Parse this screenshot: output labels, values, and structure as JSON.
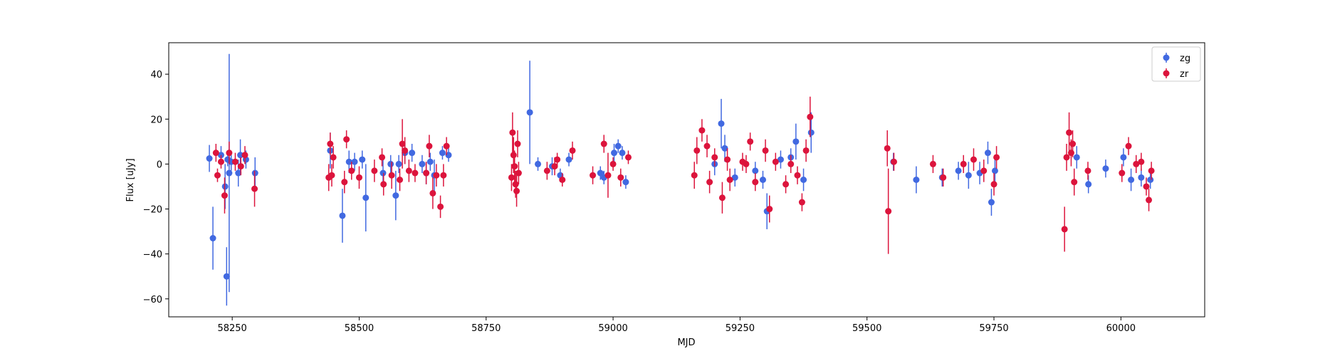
{
  "chart_data": {
    "type": "scatter",
    "xlabel": "MJD",
    "ylabel": "Flux [uJy]",
    "xlim": [
      58125,
      60165
    ],
    "ylim": [
      -68,
      54
    ],
    "xticks": [
      58250,
      58500,
      58750,
      59000,
      59250,
      59500,
      59750,
      60000
    ],
    "yticks": [
      -60,
      -40,
      -20,
      0,
      20,
      40
    ],
    "grid": false,
    "legend": "top-right",
    "series": [
      {
        "name": "zg",
        "color": "#4169e1",
        "points": [
          [
            58205,
            2.5,
            6
          ],
          [
            58212,
            -33,
            14
          ],
          [
            58228,
            4,
            4
          ],
          [
            58236,
            -10,
            10
          ],
          [
            58239,
            -50,
            13
          ],
          [
            58241,
            2,
            3
          ],
          [
            58244,
            -4,
            53
          ],
          [
            58248,
            1,
            4
          ],
          [
            58262,
            -4,
            6
          ],
          [
            58266,
            4,
            7
          ],
          [
            58277,
            2,
            4
          ],
          [
            58295,
            -4,
            7
          ],
          [
            58443,
            6,
            8
          ],
          [
            58467,
            -23,
            12
          ],
          [
            58480,
            1,
            5
          ],
          [
            58491,
            1,
            4
          ],
          [
            58506,
            2,
            4
          ],
          [
            58513,
            -15,
            15
          ],
          [
            58547,
            -4,
            6
          ],
          [
            58562,
            0,
            4
          ],
          [
            58572,
            -14,
            11
          ],
          [
            58578,
            0,
            4
          ],
          [
            58590,
            5,
            5
          ],
          [
            58604,
            5,
            4
          ],
          [
            58624,
            0,
            4
          ],
          [
            58632,
            -4,
            5
          ],
          [
            58640,
            1,
            4
          ],
          [
            58648,
            -5,
            7
          ],
          [
            58664,
            5,
            3
          ],
          [
            58676,
            4,
            3
          ],
          [
            58836,
            23,
            23
          ],
          [
            58852,
            0,
            3
          ],
          [
            58880,
            -1,
            4
          ],
          [
            58896,
            -5,
            3
          ],
          [
            58913,
            2,
            3
          ],
          [
            58975,
            -4,
            3
          ],
          [
            58982,
            -6,
            3
          ],
          [
            59002,
            5,
            4
          ],
          [
            59010,
            8,
            3
          ],
          [
            59018,
            5,
            3
          ],
          [
            59025,
            -8,
            3
          ],
          [
            59200,
            0,
            5
          ],
          [
            59213,
            18,
            11
          ],
          [
            59220,
            7,
            6
          ],
          [
            59240,
            -6,
            4
          ],
          [
            59280,
            -3,
            4
          ],
          [
            59295,
            -7,
            4
          ],
          [
            59303,
            -21,
            8
          ],
          [
            59330,
            2,
            4
          ],
          [
            59350,
            3,
            4
          ],
          [
            59360,
            10,
            8
          ],
          [
            59375,
            -7,
            5
          ],
          [
            59390,
            14,
            9
          ],
          [
            59552,
            1,
            4
          ],
          [
            59597,
            -7,
            6
          ],
          [
            59648,
            -6,
            4
          ],
          [
            59680,
            -3,
            4
          ],
          [
            59700,
            -5,
            6
          ],
          [
            59722,
            -4,
            5
          ],
          [
            59738,
            5,
            5
          ],
          [
            59745,
            -17,
            6
          ],
          [
            59752,
            -3,
            5
          ],
          [
            59913,
            3,
            5
          ],
          [
            59936,
            -9,
            4
          ],
          [
            59970,
            -2,
            4
          ],
          [
            60005,
            3,
            4
          ],
          [
            60020,
            -7,
            5
          ],
          [
            60040,
            -6,
            4
          ],
          [
            60058,
            -7,
            4
          ]
        ]
      },
      {
        "name": "zr",
        "color": "#dc143c",
        "points": [
          [
            58218,
            5,
            4
          ],
          [
            58221,
            -5,
            3
          ],
          [
            58228,
            1,
            3
          ],
          [
            58235,
            -14,
            8
          ],
          [
            58244,
            5,
            5
          ],
          [
            58256,
            1,
            4
          ],
          [
            58267,
            -1,
            4
          ],
          [
            58275,
            4,
            4
          ],
          [
            58294,
            -11,
            8
          ],
          [
            58440,
            -6,
            6
          ],
          [
            58443,
            9,
            5
          ],
          [
            58446,
            -5,
            5
          ],
          [
            58449,
            3,
            5
          ],
          [
            58471,
            -8,
            5
          ],
          [
            58475,
            11,
            4
          ],
          [
            58485,
            -3,
            4
          ],
          [
            58500,
            -6,
            5
          ],
          [
            58530,
            -3,
            5
          ],
          [
            58545,
            3,
            4
          ],
          [
            58548,
            -9,
            5
          ],
          [
            58564,
            -5,
            6
          ],
          [
            58580,
            -7,
            5
          ],
          [
            58585,
            9,
            11
          ],
          [
            58590,
            6,
            6
          ],
          [
            58598,
            -3,
            5
          ],
          [
            58610,
            -4,
            4
          ],
          [
            58632,
            -4,
            5
          ],
          [
            58638,
            8,
            5
          ],
          [
            58645,
            -13,
            7
          ],
          [
            58652,
            -5,
            5
          ],
          [
            58660,
            -19,
            5
          ],
          [
            58666,
            -5,
            5
          ],
          [
            58672,
            8,
            4
          ],
          [
            58800,
            -6,
            6
          ],
          [
            58802,
            14,
            9
          ],
          [
            58804,
            4,
            8
          ],
          [
            58806,
            -1,
            7
          ],
          [
            58808,
            -9,
            6
          ],
          [
            58810,
            -12,
            7
          ],
          [
            58812,
            9,
            6
          ],
          [
            58814,
            -4,
            5
          ],
          [
            58870,
            -3,
            4
          ],
          [
            58885,
            -1,
            4
          ],
          [
            58890,
            2,
            3
          ],
          [
            58900,
            -7,
            3
          ],
          [
            58920,
            6,
            4
          ],
          [
            58960,
            -5,
            4
          ],
          [
            58982,
            9,
            4
          ],
          [
            58990,
            -5,
            10
          ],
          [
            59000,
            0,
            3
          ],
          [
            59015,
            -6,
            4
          ],
          [
            59030,
            3,
            3
          ],
          [
            59160,
            -5,
            6
          ],
          [
            59165,
            6,
            6
          ],
          [
            59175,
            15,
            5
          ],
          [
            59185,
            8,
            5
          ],
          [
            59190,
            -8,
            5
          ],
          [
            59200,
            3,
            4
          ],
          [
            59215,
            -15,
            7
          ],
          [
            59225,
            2,
            5
          ],
          [
            59230,
            -7,
            5
          ],
          [
            59255,
            1,
            4
          ],
          [
            59262,
            0,
            4
          ],
          [
            59270,
            10,
            4
          ],
          [
            59280,
            -8,
            4
          ],
          [
            59300,
            6,
            5
          ],
          [
            59308,
            -20,
            6
          ],
          [
            59320,
            1,
            4
          ],
          [
            59340,
            -9,
            4
          ],
          [
            59350,
            0,
            4
          ],
          [
            59363,
            -5,
            4
          ],
          [
            59372,
            -17,
            4
          ],
          [
            59380,
            6,
            5
          ],
          [
            59388,
            21,
            9
          ],
          [
            59540,
            7,
            8
          ],
          [
            59542,
            -21,
            19
          ],
          [
            59553,
            1,
            4
          ],
          [
            59630,
            0,
            4
          ],
          [
            59650,
            -6,
            4
          ],
          [
            59690,
            0,
            4
          ],
          [
            59710,
            2,
            5
          ],
          [
            59730,
            -3,
            5
          ],
          [
            59750,
            -9,
            5
          ],
          [
            59755,
            3,
            5
          ],
          [
            59889,
            -29,
            10
          ],
          [
            59893,
            3,
            6
          ],
          [
            59898,
            14,
            9
          ],
          [
            59902,
            5,
            6
          ],
          [
            59905,
            9,
            6
          ],
          [
            59908,
            -8,
            6
          ],
          [
            59935,
            -3,
            4
          ],
          [
            60002,
            -4,
            4
          ],
          [
            60015,
            8,
            4
          ],
          [
            60030,
            0,
            4
          ],
          [
            60040,
            1,
            4
          ],
          [
            60050,
            -10,
            4
          ],
          [
            60055,
            -16,
            5
          ],
          [
            60060,
            -3,
            4
          ]
        ]
      }
    ]
  }
}
